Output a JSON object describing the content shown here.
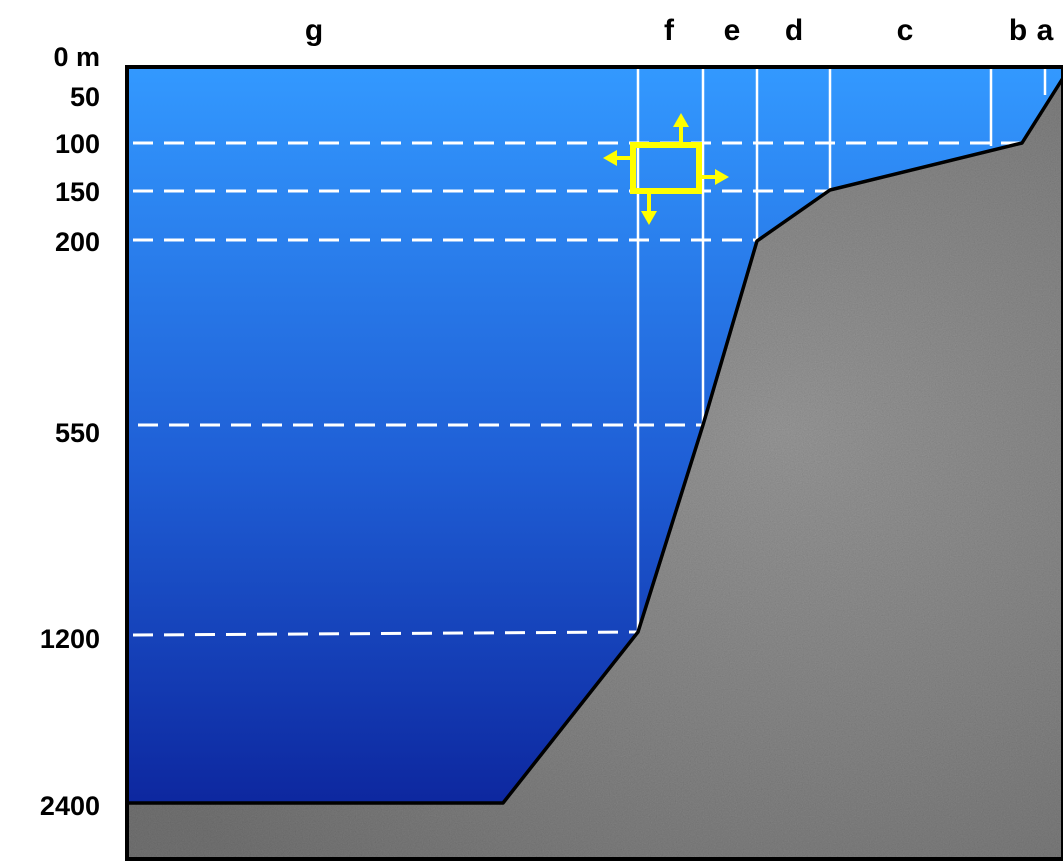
{
  "depth_labels": {
    "d0": "0 m",
    "d50": "50",
    "d100": "100",
    "d150": "150",
    "d200": "200",
    "d550": "550",
    "d1200": "1200",
    "d2400": "2400"
  },
  "zone_labels": {
    "a": "a",
    "b": "b",
    "c": "c",
    "d": "d",
    "e": "e",
    "f": "f",
    "g": "g"
  },
  "colors": {
    "water_top": "#3399ff",
    "water_bottom": "#0a1e96",
    "seabed": "#8a8a8a",
    "guide_lines": "#ffffff",
    "sampler": "#ffff00",
    "outline": "#000000"
  },
  "icons": {
    "sampler": "yellow-square-with-four-arrows"
  }
}
